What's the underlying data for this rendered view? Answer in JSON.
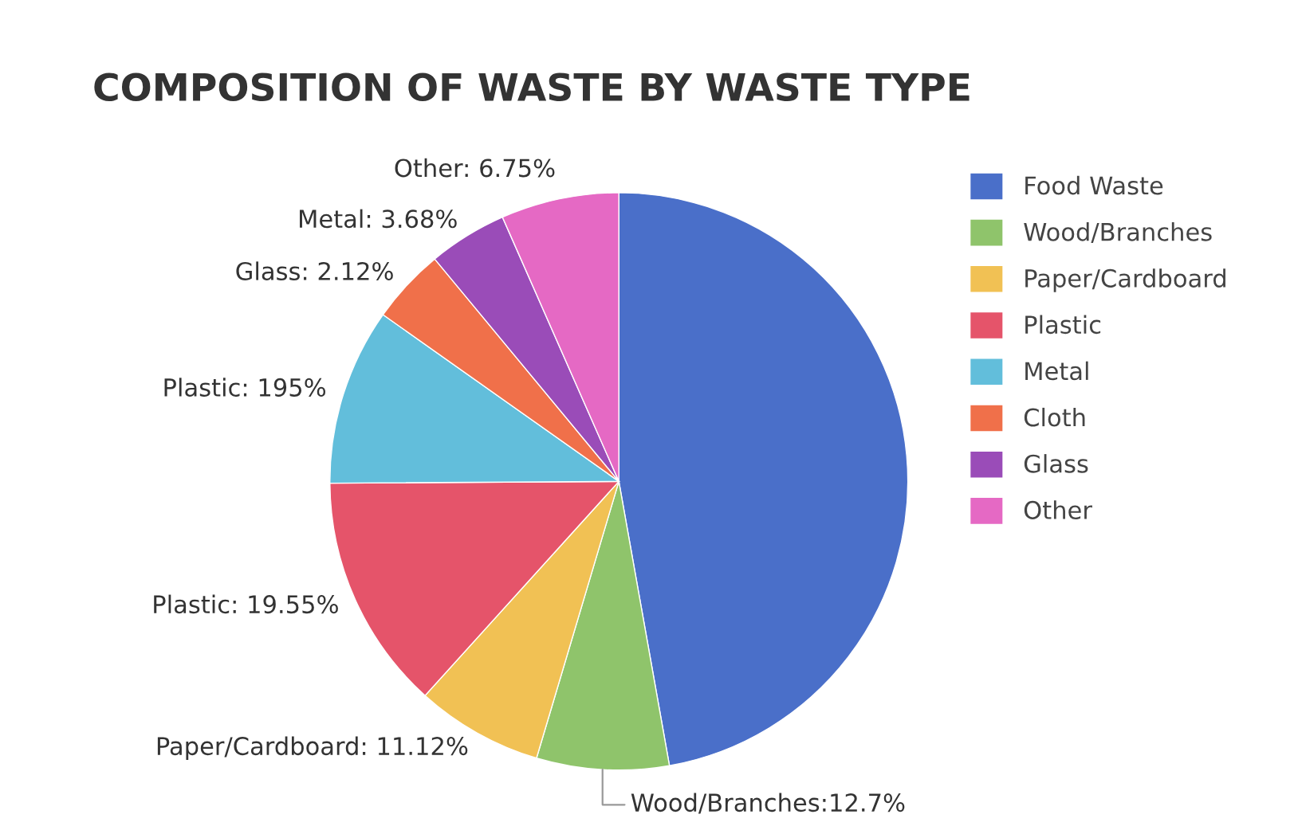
{
  "chart_data": {
    "type": "pie",
    "title": "COMPOSITION OF WASTE BY WASTE TYPE",
    "categories": [
      "Food Waste",
      "Wood/Branches",
      "Paper/Cardboard",
      "Plastic",
      "Metal",
      "Cloth",
      "Glass",
      "Other"
    ],
    "values": [
      47.2,
      7.4,
      7.1,
      13.2,
      9.9,
      4.2,
      4.4,
      6.6
    ],
    "colors": [
      "#4a6fc9",
      "#8fc46b",
      "#f1c154",
      "#e5546a",
      "#62bedb",
      "#f0704a",
      "#9a4cb8",
      "#e569c4"
    ],
    "annotations": [
      "Wood/Branches:12.7%",
      "Paper/Cardboard: 11.12%",
      "Plastic: 19.55%",
      "Plastic: 195%",
      "Glass: 2.12%",
      "Metal: 3.68%",
      "Other: 6.75%"
    ],
    "legend": "right"
  }
}
